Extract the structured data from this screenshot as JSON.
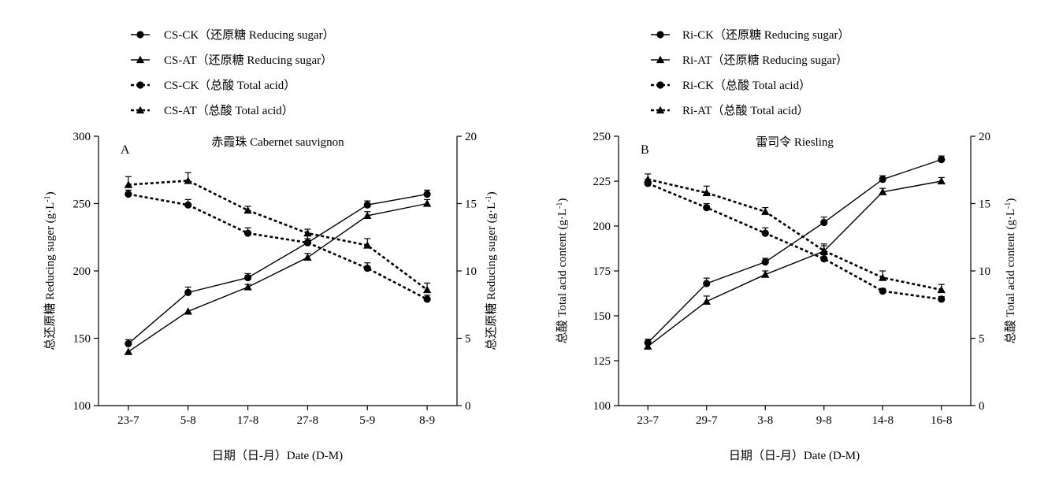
{
  "chart_data": [
    {
      "type": "line",
      "panel_label": "A",
      "title": "赤霞珠 Cabernet sauvignon",
      "xlabel": "日期（日-月）Date (D-M)",
      "ylabel_left": "总还原糖 Reducing suger (g·L-1)",
      "ylabel_right": "总还原糖 Reducing suger (g·L-1)",
      "categories": [
        "23-7",
        "5-8",
        "17-8",
        "27-8",
        "5-9",
        "8-9"
      ],
      "ylim_left": [
        100,
        300
      ],
      "yticks_left": [
        "100",
        "150",
        "200",
        "250",
        "300"
      ],
      "ylim_right": [
        0,
        20
      ],
      "yticks_right": [
        "0",
        "5",
        "10",
        "15",
        "20"
      ],
      "legend_position": "top-left",
      "grid": false,
      "series": [
        {
          "name": "CS-CK（还原糖 Reducing sugar）",
          "axis": "left",
          "marker": "circle",
          "dashed": false,
          "values": [
            146,
            184,
            195,
            221,
            249,
            257
          ],
          "errors": [
            3,
            4,
            3,
            3,
            3,
            3
          ]
        },
        {
          "name": "CS-AT（还原糖 Reducing sugar）",
          "axis": "left",
          "marker": "triangle",
          "dashed": false,
          "values": [
            140,
            170,
            188,
            210,
            241,
            250
          ],
          "errors": [
            0,
            0,
            2,
            3,
            3,
            3
          ]
        },
        {
          "name": "CS-CK（总酸 Total acid）",
          "axis": "right",
          "marker": "circle",
          "dashed": true,
          "values": [
            15.7,
            14.9,
            12.8,
            12.1,
            10.2,
            7.9
          ],
          "errors": [
            0.3,
            0.4,
            0.4,
            0.5,
            0.4,
            0.3
          ]
        },
        {
          "name": "CS-AT（总酸 Total acid）",
          "axis": "right",
          "marker": "triangle",
          "dashed": true,
          "values": [
            16.4,
            16.7,
            14.5,
            12.8,
            11.9,
            8.6
          ],
          "errors": [
            0.6,
            0.6,
            0.3,
            0.3,
            0.5,
            0.5
          ]
        }
      ]
    },
    {
      "type": "line",
      "panel_label": "B",
      "title": "雷司令 Riesling",
      "xlabel": "日期（日-月）Date (D-M)",
      "ylabel_left": "总酸 Total acid content (g·L-1)",
      "ylabel_right": "总酸 Total acid content (g·L-1)",
      "categories": [
        "23-7",
        "29-7",
        "3-8",
        "9-8",
        "14-8",
        "16-8"
      ],
      "ylim_left": [
        100,
        250
      ],
      "yticks_left": [
        "100",
        "125",
        "150",
        "175",
        "200",
        "225",
        "250"
      ],
      "ylim_right": [
        0,
        20
      ],
      "yticks_right": [
        "0",
        "5",
        "10",
        "15",
        "20"
      ],
      "legend_position": "top-left",
      "grid": false,
      "series": [
        {
          "name": "Ri-CK（还原糖 Reducing sugar）",
          "axis": "left",
          "marker": "circle",
          "dashed": false,
          "values": [
            135,
            168,
            180,
            202,
            226,
            237
          ],
          "errors": [
            2,
            3,
            2,
            3,
            2,
            2
          ]
        },
        {
          "name": "Ri-AT（还原糖 Reducing sugar）",
          "axis": "left",
          "marker": "triangle",
          "dashed": false,
          "values": [
            133,
            158,
            173,
            186,
            219,
            225
          ],
          "errors": [
            0,
            3,
            2,
            3,
            2,
            2
          ]
        },
        {
          "name": "Ri-CK（总酸 Total acid）",
          "axis": "right",
          "marker": "circle",
          "dashed": true,
          "values": [
            16.5,
            14.7,
            12.8,
            10.9,
            8.5,
            7.9
          ],
          "errors": [
            0.3,
            0.3,
            0.4,
            0.3,
            0.2,
            0.2
          ]
        },
        {
          "name": "Ri-AT（总酸 Total acid）",
          "axis": "right",
          "marker": "triangle",
          "dashed": true,
          "values": [
            16.8,
            15.8,
            14.4,
            11.5,
            9.5,
            8.6
          ],
          "errors": [
            0.4,
            0.5,
            0.3,
            0.5,
            0.5,
            0.4
          ]
        }
      ]
    }
  ]
}
